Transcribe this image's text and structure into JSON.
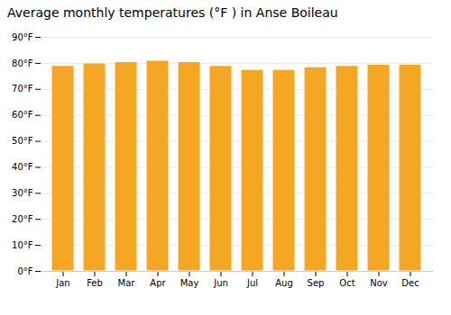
{
  "chart_data": {
    "type": "bar",
    "title": "Average monthly temperatures (°F ) in Anse Boileau",
    "categories": [
      "Jan",
      "Feb",
      "Mar",
      "Apr",
      "May",
      "Jun",
      "Jul",
      "Aug",
      "Sep",
      "Oct",
      "Nov",
      "Dec"
    ],
    "values": [
      79.0,
      80.0,
      80.5,
      81.0,
      80.5,
      79.0,
      77.5,
      77.5,
      78.5,
      79.0,
      79.5,
      79.5
    ],
    "color": "#F5A623",
    "ylim": [
      0,
      90
    ],
    "yticks": [
      {
        "value": 0,
        "label": "0°F"
      },
      {
        "value": 10,
        "label": "10°F"
      },
      {
        "value": 20,
        "label": "20°F"
      },
      {
        "value": 30,
        "label": "30°F"
      },
      {
        "value": 40,
        "label": "40°F"
      },
      {
        "value": 50,
        "label": "50°F"
      },
      {
        "value": 60,
        "label": "60°F"
      },
      {
        "value": 70,
        "label": "70°F"
      },
      {
        "value": 80,
        "label": "80°F"
      },
      {
        "value": 90,
        "label": "90°F"
      }
    ],
    "grid": true
  }
}
